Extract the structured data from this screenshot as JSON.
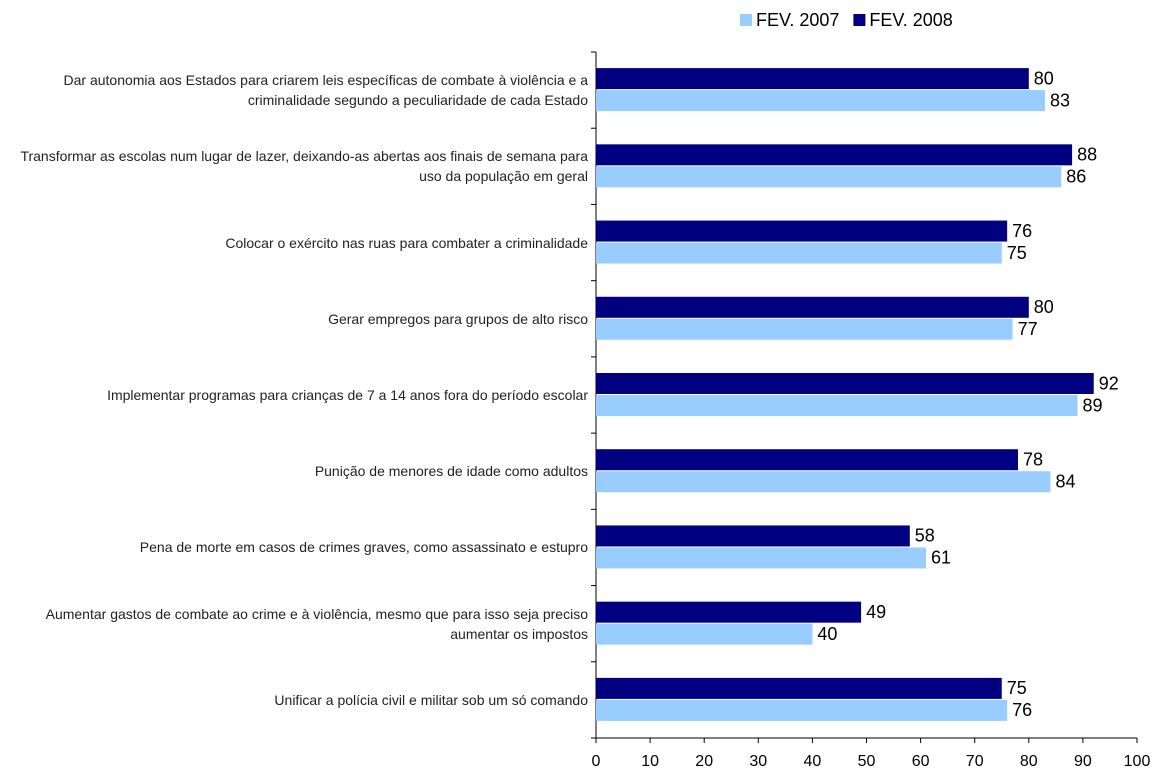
{
  "chart_data": {
    "type": "barh",
    "categories": [
      "Dar autonomia aos Estados para criarem leis específicas de combate à violência e a criminalidade segundo a peculiaridade de cada Estado",
      "Transformar as escolas num lugar de lazer, deixando-as abertas aos finais de semana para uso da população em geral",
      "Colocar o exército nas ruas para combater a criminalidade",
      "Gerar empregos para grupos de alto risco",
      "Implementar programas para crianças de 7 a 14 anos fora do período escolar",
      "Punição de menores de idade como adultos",
      "Pena de morte em casos de crimes graves, como assassinato e estupro",
      "Aumentar gastos de combate ao crime e à violência, mesmo que para isso seja preciso aumentar os impostos",
      "Unificar a polícia civil e militar sob um só comando"
    ],
    "series": [
      {
        "name": "FEV. 2007",
        "color": "#99ccff",
        "values": [
          83,
          86,
          75,
          77,
          89,
          84,
          61,
          40,
          76
        ]
      },
      {
        "name": "FEV. 2008",
        "color": "#000080",
        "values": [
          80,
          88,
          76,
          80,
          92,
          78,
          58,
          49,
          75
        ]
      }
    ],
    "xlim": [
      0,
      100
    ],
    "xticks": [
      0,
      10,
      20,
      30,
      40,
      50,
      60,
      70,
      80,
      90,
      100
    ],
    "legend": "top"
  }
}
